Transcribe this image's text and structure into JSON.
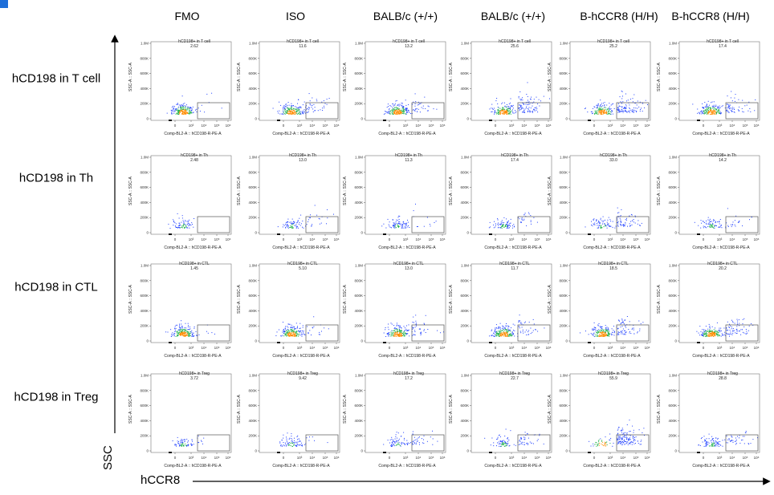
{
  "columns": [
    "FMO",
    "ISO",
    "BALB/c (+/+)",
    "BALB/c (+/+)",
    "B-hCCR8 (H/H)",
    "B-hCCR8 (H/H)"
  ],
  "rows": [
    "hCD198 in T cell",
    "hCD198 in Th",
    "hCD198 in CTL",
    "hCD198 in Treg"
  ],
  "y_axis_title": "SSC",
  "x_axis_title": "hCCR8",
  "colors": {
    "accent": "#1e6fd9",
    "density_high": "#ff8c00",
    "density_mid": "#22b14c",
    "density_low": "#1f3fff",
    "gate": "#555555"
  },
  "chart_data": {
    "type": "scatter",
    "panel_x_label": "Comp-BL2-A :: hCD198-R-PE-A",
    "panel_y_label": "SSC-A :: SSC-A",
    "y_ticks": [
      "1.0M",
      "800K",
      "600K",
      "400K",
      "200K",
      "0"
    ],
    "x_ticks": [
      "0",
      "10³",
      "10⁴",
      "10⁵",
      "10⁶"
    ],
    "gate_values": [
      [
        "2.62",
        "11.6",
        "13.2",
        "25.6",
        "25.2",
        "17.4"
      ],
      [
        "2.48",
        "13.0",
        "11.3",
        "17.4",
        "33.0",
        "14.2"
      ],
      [
        "1.45",
        "5.10",
        "13.0",
        "11.7",
        "18.5",
        "20.2"
      ],
      [
        "3.72",
        "9.42",
        "17.2",
        "22.7",
        "55.9",
        "28.8"
      ]
    ],
    "gate_names": [
      "hCD198+ in T cell",
      "hCD198+ in Th",
      "hCD198+ in CTL",
      "hCD198+ in Treg"
    ]
  }
}
